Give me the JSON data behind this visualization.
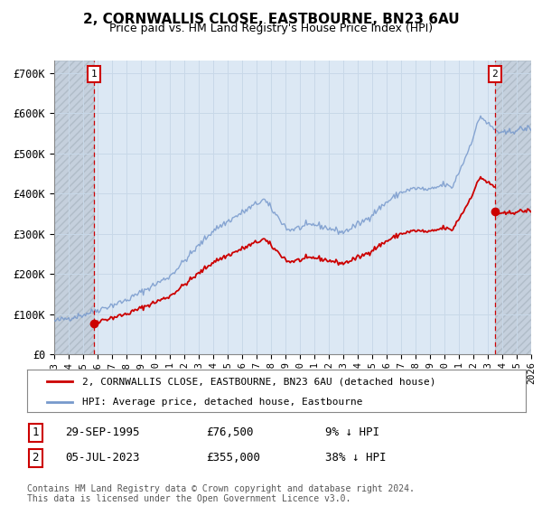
{
  "title": "2, CORNWALLIS CLOSE, EASTBOURNE, BN23 6AU",
  "subtitle": "Price paid vs. HM Land Registry's House Price Index (HPI)",
  "sale1_label": "29-SEP-1995",
  "sale1_price": 76500,
  "sale1_hpi_diff": "9% ↓ HPI",
  "sale2_label": "05-JUL-2023",
  "sale2_price": 355000,
  "sale2_hpi_diff": "38% ↓ HPI",
  "hpi_color": "#7799cc",
  "price_color": "#cc0000",
  "marker_color": "#cc0000",
  "dashed_line_color": "#cc0000",
  "grid_color": "#c8d8e8",
  "background_color": "#dce8f4",
  "hatch_facecolor": "#c5d0dd",
  "legend_label_price": "2, CORNWALLIS CLOSE, EASTBOURNE, BN23 6AU (detached house)",
  "legend_label_hpi": "HPI: Average price, detached house, Eastbourne",
  "footer": "Contains HM Land Registry data © Crown copyright and database right 2024.\nThis data is licensed under the Open Government Licence v3.0.",
  "ylim": [
    0,
    730000
  ],
  "yticks": [
    0,
    100000,
    200000,
    300000,
    400000,
    500000,
    600000,
    700000
  ],
  "ytick_labels": [
    "£0",
    "£100K",
    "£200K",
    "£300K",
    "£400K",
    "£500K",
    "£600K",
    "£700K"
  ],
  "xlim_start": 1993.0,
  "xlim_end": 2026.0
}
